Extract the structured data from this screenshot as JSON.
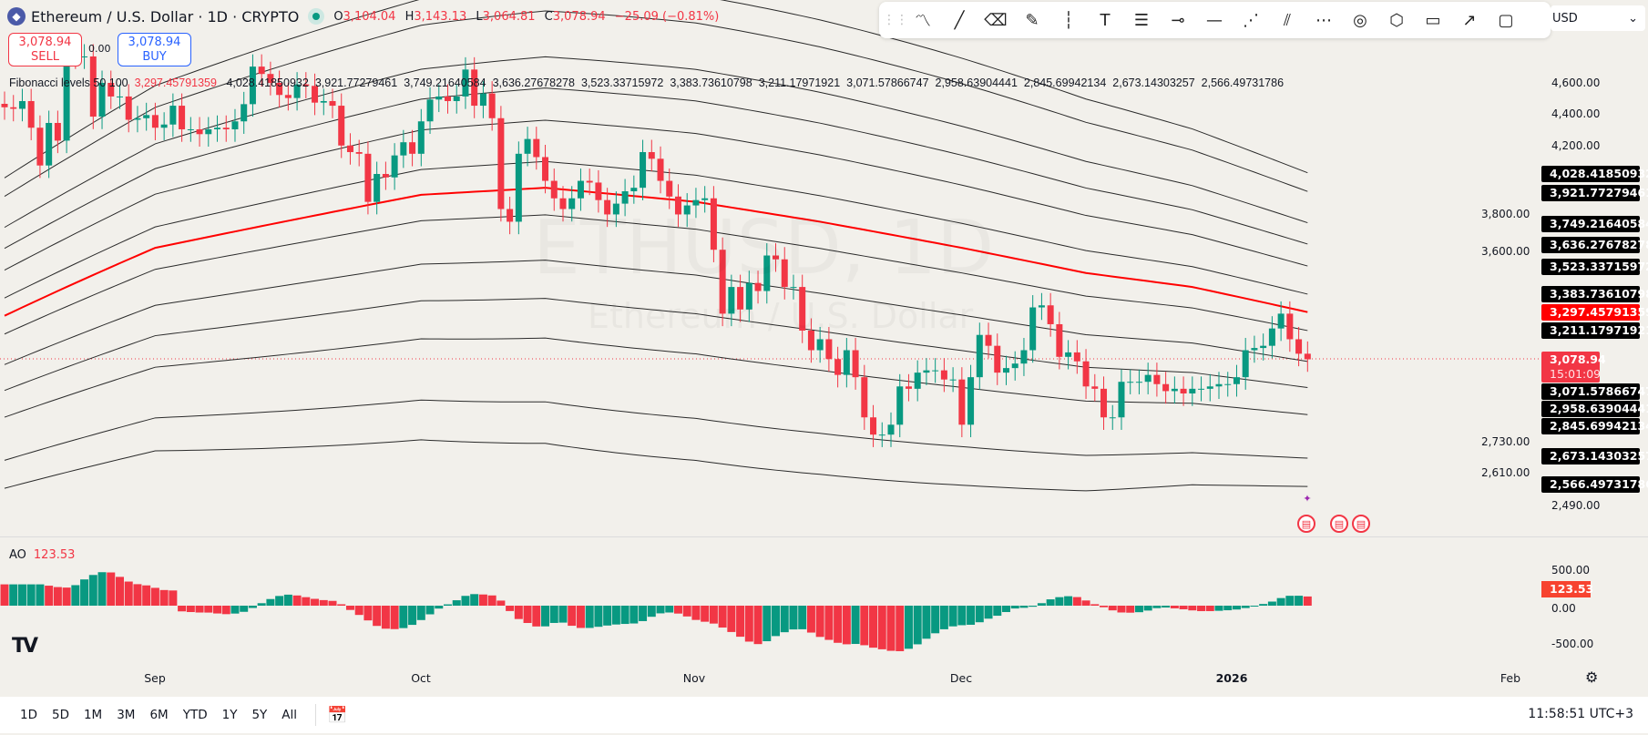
{
  "header": {
    "symbol_title": "Ethereum / U.S. Dollar · 1D · CRYPTO",
    "ohlc": [
      {
        "k": "O",
        "v": "3,104.04"
      },
      {
        "k": "H",
        "v": "3,143.13"
      },
      {
        "k": "L",
        "v": "3,064.81"
      },
      {
        "k": "C",
        "v": "3,078.94"
      }
    ],
    "change": "−25.09 (−0.81%)"
  },
  "trade": {
    "sell_price": "3,078.94",
    "sell_label": "SELL",
    "buy_price": "3,078.94",
    "buy_label": "BUY",
    "spread": "0.00"
  },
  "fib_legend": {
    "name": "Fibonacci levels 50 100",
    "basis": "3,297.45791359",
    "levels": [
      "4,028.41850932",
      "3,921.77279461",
      "3,749.21640584",
      "3,636.27678278",
      "3,523.33715972",
      "3,383.73610798",
      "3,211.17971921",
      "3,071.57866747",
      "2,958.63904441",
      "2,845.69942134",
      "2,673.14303257",
      "2,566.49731786"
    ]
  },
  "toolbar": {
    "icons": [
      "drag-handle-icon",
      "path-icon",
      "trend-line-icon",
      "eraser-icon",
      "brush-icon",
      "vertical-line-icon",
      "text-icon",
      "fib-retracement-icon",
      "horizontal-ray-icon",
      "horizontal-line-icon",
      "parallel-channel-icon",
      "double-line-icon",
      "pitchfork-icon",
      "circle-icon",
      "polyline-icon",
      "callout-icon",
      "arrow-icon",
      "rectangle-icon"
    ]
  },
  "currency": "USD",
  "price_axis": {
    "ticks": [
      "4,600.00",
      "4,400.00",
      "4,200.00",
      "3,800.00",
      "3,600.00",
      "2,730.00",
      "2,610.00",
      "2,490.00"
    ],
    "last_price": "3,078.94",
    "countdown": "15:01:09"
  },
  "watermark": {
    "ticker": "ETHUSD, 1D",
    "name": "Ethereum / U.S. Dollar"
  },
  "ao": {
    "label": "AO",
    "value": "123.53",
    "ticks": [
      "500.00",
      "0.00",
      "-500.00"
    ]
  },
  "time_axis": [
    "Sep",
    "Oct",
    "Nov",
    "Dec",
    "2026",
    "Feb"
  ],
  "bottom": {
    "ranges": [
      "1D",
      "5D",
      "1M",
      "3M",
      "6M",
      "YTD",
      "1Y",
      "5Y",
      "All"
    ],
    "clock": "11:58:51 UTC+3"
  },
  "colors": {
    "up": "#089981",
    "down": "#f23645",
    "basis": "#ff0000",
    "bands": "#2a2a2a",
    "background": "#f2f0eb"
  },
  "chart_data": {
    "type": "candlestick",
    "scale": "log",
    "ylim": [
      2400,
      4950
    ],
    "grid": false,
    "basis_line": [
      [
        "2025-08-15",
        3280
      ],
      [
        "2025-09-01",
        3620
      ],
      [
        "2025-10-01",
        3910
      ],
      [
        "2025-10-15",
        3950
      ],
      [
        "2025-11-01",
        3870
      ],
      [
        "2025-11-15",
        3760
      ],
      [
        "2025-12-01",
        3620
      ],
      [
        "2025-12-15",
        3490
      ],
      [
        "2025-12-27",
        3420
      ],
      [
        "2026-01-09",
        3297.46
      ]
    ],
    "fib_levels": [
      4028.41850932,
      3921.77279461,
      3749.21640584,
      3636.27678278,
      3523.33715972,
      3383.73610798,
      3211.17971921,
      3071.57866747,
      2958.63904441,
      2845.69942134,
      2673.14303257,
      2566.49731786
    ],
    "basis_last": 3297.45791359,
    "closes": [
      [
        "2025-08-15",
        4440
      ],
      [
        "2025-08-16",
        4430
      ],
      [
        "2025-08-17",
        4480
      ],
      [
        "2025-08-18",
        4310
      ],
      [
        "2025-08-19",
        4080
      ],
      [
        "2025-08-20",
        4340
      ],
      [
        "2025-08-21",
        4230
      ],
      [
        "2025-08-22",
        4840
      ],
      [
        "2025-08-23",
        4780
      ],
      [
        "2025-08-24",
        4780
      ],
      [
        "2025-08-25",
        4380
      ],
      [
        "2025-08-26",
        4600
      ],
      [
        "2025-08-27",
        4510
      ],
      [
        "2025-08-28",
        4510
      ],
      [
        "2025-08-29",
        4360
      ],
      [
        "2025-08-30",
        4370
      ],
      [
        "2025-08-31",
        4390
      ],
      [
        "2025-09-01",
        4310
      ],
      [
        "2025-09-02",
        4330
      ],
      [
        "2025-09-03",
        4450
      ],
      [
        "2025-09-04",
        4300
      ],
      [
        "2025-09-05",
        4300
      ],
      [
        "2025-09-06",
        4270
      ],
      [
        "2025-09-07",
        4300
      ],
      [
        "2025-09-08",
        4310
      ],
      [
        "2025-09-09",
        4300
      ],
      [
        "2025-09-10",
        4350
      ],
      [
        "2025-09-11",
        4460
      ],
      [
        "2025-09-12",
        4710
      ],
      [
        "2025-09-13",
        4660
      ],
      [
        "2025-09-14",
        4600
      ],
      [
        "2025-09-15",
        4520
      ],
      [
        "2025-09-16",
        4500
      ],
      [
        "2025-09-17",
        4590
      ],
      [
        "2025-09-18",
        4580
      ],
      [
        "2025-09-19",
        4470
      ],
      [
        "2025-09-20",
        4480
      ],
      [
        "2025-09-21",
        4450
      ],
      [
        "2025-09-22",
        4200
      ],
      [
        "2025-09-23",
        4160
      ],
      [
        "2025-09-24",
        4150
      ],
      [
        "2025-09-25",
        3870
      ],
      [
        "2025-09-26",
        4030
      ],
      [
        "2025-09-27",
        4010
      ],
      [
        "2025-09-28",
        4140
      ],
      [
        "2025-09-29",
        4220
      ],
      [
        "2025-09-30",
        4150
      ],
      [
        "2025-10-01",
        4350
      ],
      [
        "2025-10-02",
        4490
      ],
      [
        "2025-10-03",
        4510
      ],
      [
        "2025-10-04",
        4480
      ],
      [
        "2025-10-05",
        4510
      ],
      [
        "2025-10-06",
        4690
      ],
      [
        "2025-10-07",
        4450
      ],
      [
        "2025-10-08",
        4530
      ],
      [
        "2025-10-09",
        4370
      ],
      [
        "2025-10-10",
        3830
      ],
      [
        "2025-10-11",
        3760
      ],
      [
        "2025-10-12",
        4150
      ],
      [
        "2025-10-13",
        4240
      ],
      [
        "2025-10-14",
        4130
      ],
      [
        "2025-10-15",
        3990
      ],
      [
        "2025-10-16",
        3890
      ],
      [
        "2025-10-17",
        3830
      ],
      [
        "2025-10-18",
        3890
      ],
      [
        "2025-10-19",
        3990
      ],
      [
        "2025-10-20",
        3980
      ],
      [
        "2025-10-21",
        3880
      ],
      [
        "2025-10-22",
        3800
      ],
      [
        "2025-10-23",
        3860
      ],
      [
        "2025-10-24",
        3930
      ],
      [
        "2025-10-25",
        3950
      ],
      [
        "2025-10-26",
        4160
      ],
      [
        "2025-10-27",
        4120
      ],
      [
        "2025-10-28",
        3990
      ],
      [
        "2025-10-29",
        3900
      ],
      [
        "2025-10-30",
        3800
      ],
      [
        "2025-10-31",
        3850
      ],
      [
        "2025-11-01",
        3880
      ],
      [
        "2025-11-02",
        3890
      ],
      [
        "2025-11-03",
        3610
      ],
      [
        "2025-11-04",
        3290
      ],
      [
        "2025-11-05",
        3420
      ],
      [
        "2025-11-06",
        3310
      ],
      [
        "2025-11-07",
        3440
      ],
      [
        "2025-11-08",
        3400
      ],
      [
        "2025-11-09",
        3580
      ],
      [
        "2025-11-10",
        3560
      ],
      [
        "2025-11-11",
        3420
      ],
      [
        "2025-11-12",
        3420
      ],
      [
        "2025-11-13",
        3210
      ],
      [
        "2025-11-14",
        3120
      ],
      [
        "2025-11-15",
        3170
      ],
      [
        "2025-11-16",
        3080
      ],
      [
        "2025-11-17",
        3010
      ],
      [
        "2025-11-18",
        3120
      ],
      [
        "2025-11-19",
        3000
      ],
      [
        "2025-11-20",
        2830
      ],
      [
        "2025-11-21",
        2760
      ],
      [
        "2025-11-22",
        2760
      ],
      [
        "2025-11-23",
        2800
      ],
      [
        "2025-11-24",
        2960
      ],
      [
        "2025-11-25",
        2950
      ],
      [
        "2025-11-26",
        3020
      ],
      [
        "2025-11-27",
        3030
      ],
      [
        "2025-11-28",
        3030
      ],
      [
        "2025-11-29",
        2990
      ],
      [
        "2025-11-30",
        2990
      ],
      [
        "2025-12-01",
        2800
      ],
      [
        "2025-12-02",
        3000
      ],
      [
        "2025-12-03",
        3190
      ],
      [
        "2025-12-04",
        3140
      ],
      [
        "2025-12-05",
        3020
      ],
      [
        "2025-12-06",
        3040
      ],
      [
        "2025-12-07",
        3060
      ],
      [
        "2025-12-08",
        3120
      ],
      [
        "2025-12-09",
        3320
      ],
      [
        "2025-12-10",
        3330
      ],
      [
        "2025-12-11",
        3240
      ],
      [
        "2025-12-12",
        3090
      ],
      [
        "2025-12-13",
        3110
      ],
      [
        "2025-12-14",
        3070
      ],
      [
        "2025-12-15",
        2960
      ],
      [
        "2025-12-16",
        2950
      ],
      [
        "2025-12-17",
        2830
      ],
      [
        "2025-12-18",
        2830
      ],
      [
        "2025-12-19",
        2980
      ],
      [
        "2025-12-20",
        2980
      ],
      [
        "2025-12-21",
        2980
      ],
      [
        "2025-12-22",
        3010
      ],
      [
        "2025-12-23",
        2970
      ],
      [
        "2025-12-24",
        2940
      ],
      [
        "2025-12-25",
        2950
      ],
      [
        "2025-12-26",
        2930
      ],
      [
        "2025-12-27",
        2950
      ],
      [
        "2025-12-28",
        2950
      ],
      [
        "2025-12-29",
        2960
      ],
      [
        "2025-12-30",
        2970
      ],
      [
        "2025-12-31",
        2970
      ],
      [
        "2026-01-01",
        3000
      ],
      [
        "2026-01-02",
        3120
      ],
      [
        "2026-01-03",
        3130
      ],
      [
        "2026-01-04",
        3140
      ],
      [
        "2026-01-05",
        3220
      ],
      [
        "2026-01-06",
        3290
      ],
      [
        "2026-01-07",
        3170
      ],
      [
        "2026-01-08",
        3104.04
      ],
      [
        "2026-01-09",
        3078.94
      ]
    ]
  }
}
